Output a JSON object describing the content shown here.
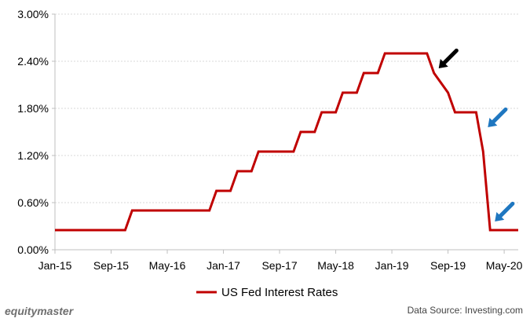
{
  "chart_data": {
    "type": "line",
    "title": "",
    "xlabel": "",
    "ylabel": "",
    "x_tick_labels": [
      "Jan-15",
      "Sep-15",
      "May-16",
      "Jan-17",
      "Sep-17",
      "May-18",
      "Jan-19",
      "Sep-19",
      "May-20"
    ],
    "y_tick_labels": [
      "0.00%",
      "0.60%",
      "1.20%",
      "1.80%",
      "2.40%",
      "3.00%"
    ],
    "ylim": [
      0,
      3.0
    ],
    "xlim": [
      "2015-01",
      "2020-07"
    ],
    "grid": "horizontal",
    "legend_position": "bottom",
    "series": [
      {
        "name": "US Fed Interest Rates",
        "color": "#c00000",
        "points": [
          {
            "x": "2015-01",
            "y": 0.25
          },
          {
            "x": "2015-11",
            "y": 0.25
          },
          {
            "x": "2015-12",
            "y": 0.5
          },
          {
            "x": "2016-11",
            "y": 0.5
          },
          {
            "x": "2016-12",
            "y": 0.75
          },
          {
            "x": "2017-02",
            "y": 0.75
          },
          {
            "x": "2017-03",
            "y": 1.0
          },
          {
            "x": "2017-05",
            "y": 1.0
          },
          {
            "x": "2017-06",
            "y": 1.25
          },
          {
            "x": "2017-11",
            "y": 1.25
          },
          {
            "x": "2017-12",
            "y": 1.5
          },
          {
            "x": "2018-02",
            "y": 1.5
          },
          {
            "x": "2018-03",
            "y": 1.75
          },
          {
            "x": "2018-05",
            "y": 1.75
          },
          {
            "x": "2018-06",
            "y": 2.0
          },
          {
            "x": "2018-08",
            "y": 2.0
          },
          {
            "x": "2018-09",
            "y": 2.25
          },
          {
            "x": "2018-11",
            "y": 2.25
          },
          {
            "x": "2018-12",
            "y": 2.5
          },
          {
            "x": "2019-06",
            "y": 2.5
          },
          {
            "x": "2019-07",
            "y": 2.25
          },
          {
            "x": "2019-09",
            "y": 2.0
          },
          {
            "x": "2019-10",
            "y": 1.75
          },
          {
            "x": "2020-01",
            "y": 1.75
          },
          {
            "x": "2020-02",
            "y": 1.25
          },
          {
            "x": "2020-03",
            "y": 0.25
          },
          {
            "x": "2020-07",
            "y": 0.25
          }
        ]
      }
    ],
    "annotations": [
      {
        "type": "arrow",
        "color": "#000000",
        "points_to": {
          "x": "2019-07",
          "y": 2.25
        }
      },
      {
        "type": "arrow",
        "color": "#1f77c0",
        "points_to": {
          "x": "2020-02",
          "y": 1.5
        }
      },
      {
        "type": "arrow",
        "color": "#1f77c0",
        "points_to": {
          "x": "2020-03",
          "y": 0.3
        }
      }
    ]
  },
  "branding": {
    "logo_text": "equitymaster",
    "source_text": "Data Source: Investing.com"
  }
}
